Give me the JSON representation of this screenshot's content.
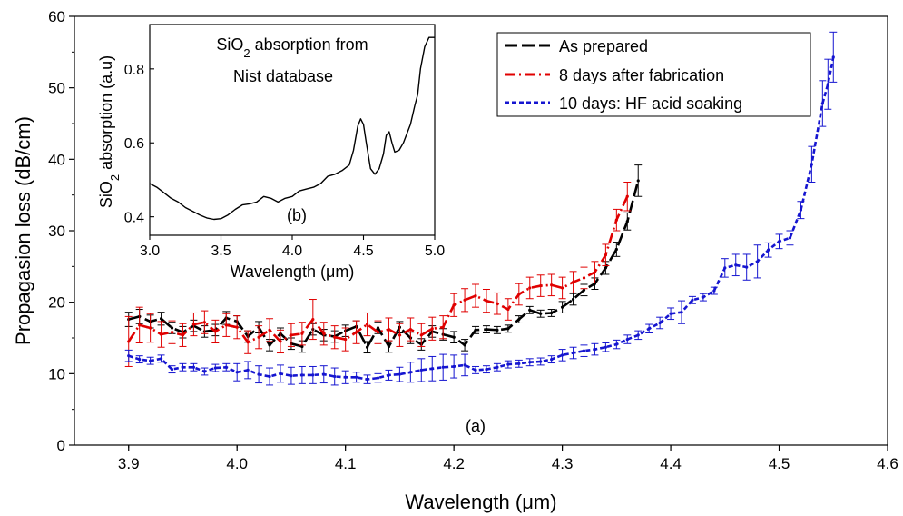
{
  "chart_data": [
    {
      "type": "line",
      "panel_label": "(a)",
      "xlabel": "Wavelength (μm)",
      "ylabel": "Propagasion loss (dB/cm)",
      "xlim": [
        3.85,
        4.6
      ],
      "ylim": [
        0,
        60
      ],
      "xticks": [
        3.9,
        4.0,
        4.1,
        4.2,
        4.3,
        4.4,
        4.5,
        4.6
      ],
      "yticks": [
        0,
        10,
        20,
        30,
        40,
        50,
        60
      ],
      "legend_position": "top-right",
      "series": [
        {
          "name": "As prepared",
          "color": "#000000",
          "dash": "long-dash",
          "x": [
            3.9,
            3.91,
            3.92,
            3.93,
            3.94,
            3.95,
            3.96,
            3.97,
            3.98,
            3.99,
            4.0,
            4.01,
            4.02,
            4.03,
            4.04,
            4.05,
            4.06,
            4.07,
            4.08,
            4.09,
            4.1,
            4.11,
            4.12,
            4.13,
            4.14,
            4.15,
            4.16,
            4.17,
            4.18,
            4.19,
            4.2,
            4.21,
            4.22,
            4.23,
            4.24,
            4.25,
            4.26,
            4.27,
            4.28,
            4.29,
            4.3,
            4.31,
            4.32,
            4.33,
            4.34,
            4.35,
            4.36,
            4.37
          ],
          "y": [
            17.6,
            18.0,
            17.3,
            17.7,
            16.4,
            15.8,
            16.7,
            15.9,
            16.1,
            17.8,
            17.3,
            15.2,
            16.5,
            14.0,
            15.6,
            14.2,
            13.8,
            16.2,
            15.4,
            15.2,
            16.0,
            16.6,
            13.7,
            16.4,
            13.8,
            16.5,
            15.0,
            14.1,
            15.9,
            15.5,
            15.1,
            14.0,
            16.1,
            16.2,
            16.1,
            16.3,
            17.6,
            18.9,
            18.4,
            18.5,
            19.3,
            20.4,
            21.7,
            22.6,
            24.8,
            27.4,
            31.3,
            37.0
          ],
          "err": [
            1.0,
            1.0,
            0.9,
            0.9,
            0.8,
            0.8,
            0.8,
            0.8,
            0.8,
            0.9,
            0.8,
            0.8,
            0.8,
            0.8,
            0.8,
            0.8,
            0.8,
            0.8,
            0.8,
            0.8,
            0.8,
            0.8,
            0.8,
            0.8,
            0.8,
            0.8,
            0.8,
            0.8,
            0.8,
            0.8,
            0.8,
            0.8,
            0.5,
            0.5,
            0.5,
            0.5,
            0.5,
            0.5,
            0.5,
            0.5,
            0.8,
            0.8,
            0.8,
            0.8,
            0.9,
            1.0,
            1.2,
            2.2
          ]
        },
        {
          "name": "8 days after fabrication",
          "color": "#e00000",
          "dash": "dash-dot",
          "x": [
            3.9,
            3.91,
            3.92,
            3.93,
            3.94,
            3.95,
            3.96,
            3.97,
            3.98,
            3.99,
            4.0,
            4.01,
            4.02,
            4.03,
            4.04,
            4.05,
            4.06,
            4.07,
            4.08,
            4.09,
            4.1,
            4.11,
            4.12,
            4.13,
            4.14,
            4.15,
            4.16,
            4.17,
            4.18,
            4.19,
            4.2,
            4.21,
            4.22,
            4.23,
            4.24,
            4.25,
            4.26,
            4.27,
            4.28,
            4.29,
            4.3,
            4.31,
            4.32,
            4.33,
            4.34,
            4.35,
            4.36
          ],
          "y": [
            14.5,
            16.8,
            16.4,
            15.5,
            15.8,
            15.4,
            16.9,
            17.2,
            15.9,
            16.8,
            16.5,
            14.4,
            15.1,
            16.1,
            14.5,
            15.4,
            15.6,
            17.6,
            15.6,
            15.1,
            14.8,
            15.8,
            16.9,
            15.8,
            16.2,
            15.4,
            16.2,
            15.4,
            16.3,
            16.5,
            19.6,
            20.3,
            20.9,
            20.2,
            19.8,
            19.0,
            21.1,
            22.0,
            22.3,
            22.4,
            22.0,
            22.8,
            23.4,
            24.2,
            26.6,
            31.5,
            34.8
          ],
          "err": [
            3.5,
            2.5,
            2.0,
            1.8,
            1.6,
            1.6,
            1.6,
            1.6,
            1.6,
            1.6,
            1.6,
            1.6,
            1.6,
            1.6,
            1.6,
            1.6,
            1.6,
            2.8,
            1.6,
            1.6,
            1.6,
            1.6,
            1.6,
            1.6,
            1.6,
            1.6,
            1.6,
            1.6,
            1.6,
            1.6,
            1.6,
            1.6,
            1.6,
            1.6,
            1.5,
            1.5,
            1.5,
            1.5,
            1.5,
            1.5,
            1.5,
            1.5,
            1.5,
            1.5,
            1.5,
            1.5,
            2.0
          ]
        },
        {
          "name": "10 days: HF acid soaking",
          "color": "#1515d0",
          "dash": "short-dash",
          "x": [
            3.9,
            3.91,
            3.92,
            3.93,
            3.94,
            3.95,
            3.96,
            3.97,
            3.98,
            3.99,
            4.0,
            4.01,
            4.02,
            4.03,
            4.04,
            4.05,
            4.06,
            4.07,
            4.08,
            4.09,
            4.1,
            4.11,
            4.12,
            4.13,
            4.14,
            4.15,
            4.16,
            4.17,
            4.18,
            4.19,
            4.2,
            4.21,
            4.22,
            4.23,
            4.24,
            4.25,
            4.26,
            4.27,
            4.28,
            4.29,
            4.3,
            4.31,
            4.32,
            4.33,
            4.34,
            4.35,
            4.36,
            4.37,
            4.38,
            4.39,
            4.4,
            4.41,
            4.42,
            4.43,
            4.44,
            4.45,
            4.46,
            4.47,
            4.48,
            4.49,
            4.5,
            4.51,
            4.52,
            4.53,
            4.54,
            4.545,
            4.55
          ],
          "y": [
            12.5,
            12.0,
            11.8,
            12.1,
            10.6,
            10.9,
            10.9,
            10.3,
            10.8,
            10.9,
            10.2,
            10.5,
            9.9,
            9.6,
            10.0,
            9.7,
            9.8,
            9.8,
            9.9,
            9.6,
            9.5,
            9.5,
            9.2,
            9.4,
            9.8,
            9.9,
            10.2,
            10.5,
            10.7,
            10.9,
            11.0,
            11.2,
            10.5,
            10.6,
            10.9,
            11.3,
            11.4,
            11.6,
            11.7,
            12.0,
            12.6,
            12.9,
            13.2,
            13.4,
            13.7,
            14.1,
            14.8,
            15.4,
            16.3,
            17.1,
            18.4,
            18.6,
            20.3,
            20.7,
            21.6,
            24.8,
            25.2,
            24.9,
            25.7,
            27.3,
            28.5,
            29.0,
            32.9,
            39.3,
            47.8,
            50.5,
            54.3
          ],
          "err": [
            0.8,
            0.5,
            0.5,
            0.5,
            0.5,
            0.5,
            0.5,
            0.5,
            0.5,
            0.5,
            1.2,
            1.2,
            1.2,
            1.2,
            1.2,
            1.2,
            1.2,
            1.2,
            1.2,
            1.2,
            0.9,
            0.7,
            0.6,
            0.6,
            0.7,
            1.0,
            1.4,
            1.6,
            1.7,
            1.8,
            1.6,
            1.5,
            0.5,
            0.5,
            0.5,
            0.5,
            0.5,
            0.5,
            0.5,
            0.5,
            0.8,
            0.8,
            0.8,
            0.8,
            0.6,
            0.6,
            0.6,
            0.6,
            0.6,
            0.8,
            0.8,
            1.6,
            0.5,
            0.5,
            0.5,
            1.3,
            1.5,
            1.8,
            2.3,
            1.0,
            1.0,
            1.0,
            1.2,
            2.5,
            3.2,
            3.5,
            3.5
          ]
        }
      ]
    },
    {
      "type": "line",
      "panel_label": "(b)",
      "title": "SiO2 absorption from Nist database",
      "title_line1_main": "SiO",
      "title_line1_sub": "2",
      "title_line1_tail": " absorption from",
      "title_line2": "Nist database",
      "xlabel": "Wavelength (μm)",
      "ylabel_main": "SiO",
      "ylabel_sub": "2",
      "ylabel_tail": " absorption (a.u)",
      "xlim": [
        3.0,
        5.0
      ],
      "ylim": [
        0.35,
        0.92
      ],
      "xticks": [
        3.0,
        3.5,
        4.0,
        4.5,
        5.0
      ],
      "yticks": [
        0.4,
        0.6,
        0.8
      ],
      "series": [
        {
          "color": "#000000",
          "x": [
            3.0,
            3.05,
            3.1,
            3.15,
            3.2,
            3.25,
            3.3,
            3.35,
            3.4,
            3.45,
            3.5,
            3.55,
            3.6,
            3.65,
            3.7,
            3.75,
            3.8,
            3.85,
            3.9,
            3.95,
            4.0,
            4.05,
            4.1,
            4.15,
            4.2,
            4.25,
            4.3,
            4.35,
            4.4,
            4.43,
            4.46,
            4.48,
            4.5,
            4.52,
            4.55,
            4.58,
            4.61,
            4.64,
            4.66,
            4.68,
            4.7,
            4.72,
            4.75,
            4.78,
            4.8,
            4.83,
            4.86,
            4.88,
            4.9,
            4.93,
            4.96,
            5.0
          ],
          "y": [
            0.49,
            0.48,
            0.465,
            0.45,
            0.44,
            0.425,
            0.415,
            0.405,
            0.397,
            0.393,
            0.395,
            0.405,
            0.42,
            0.432,
            0.435,
            0.44,
            0.455,
            0.45,
            0.44,
            0.45,
            0.455,
            0.47,
            0.475,
            0.48,
            0.49,
            0.51,
            0.515,
            0.525,
            0.54,
            0.58,
            0.645,
            0.665,
            0.65,
            0.6,
            0.53,
            0.515,
            0.53,
            0.57,
            0.62,
            0.63,
            0.6,
            0.575,
            0.58,
            0.6,
            0.62,
            0.65,
            0.7,
            0.73,
            0.8,
            0.86,
            0.885,
            0.885
          ]
        }
      ]
    }
  ]
}
